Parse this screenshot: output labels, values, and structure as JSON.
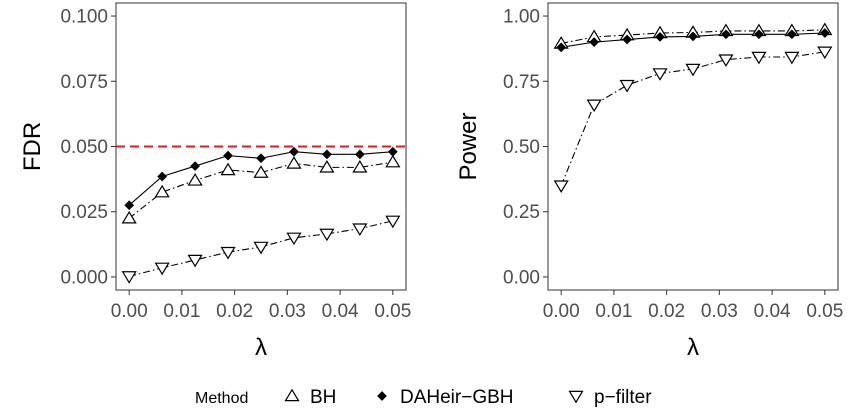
{
  "chart_data": [
    {
      "type": "line",
      "ylabel": "FDR",
      "xlabel": "λ",
      "x": [
        0.0,
        0.00625,
        0.0125,
        0.01875,
        0.025,
        0.03125,
        0.0375,
        0.04375,
        0.05
      ],
      "xticks": [
        0.0,
        0.01,
        0.02,
        0.03,
        0.04,
        0.05
      ],
      "xtick_labels": [
        "0.00",
        "0.01",
        "0.02",
        "0.03",
        "0.04",
        "0.05"
      ],
      "yticks": [
        0.0,
        0.025,
        0.05,
        0.075,
        0.1
      ],
      "ytick_labels": [
        "0.000",
        "0.025",
        "0.050",
        "0.075",
        "0.100"
      ],
      "xlim": [
        -0.0025,
        0.0525
      ],
      "ylim": [
        -0.005,
        0.105
      ],
      "reference_line": {
        "y": 0.05,
        "color": "#e41a1c",
        "style": "dashed"
      },
      "series": [
        {
          "name": "BH",
          "values": [
            0.0225,
            0.0325,
            0.037,
            0.041,
            0.04,
            0.0435,
            0.042,
            0.042,
            0.044
          ]
        },
        {
          "name": "DAHeir−GBH",
          "values": [
            0.0275,
            0.0385,
            0.0425,
            0.0465,
            0.0455,
            0.048,
            0.047,
            0.047,
            0.048
          ]
        },
        {
          "name": "p−filter",
          "values": [
            0.0002,
            0.0035,
            0.0065,
            0.0095,
            0.0115,
            0.015,
            0.0165,
            0.0185,
            0.0215
          ]
        }
      ],
      "grid": false
    },
    {
      "type": "line",
      "ylabel": "Power",
      "xlabel": "λ",
      "x": [
        0.0,
        0.00625,
        0.0125,
        0.01875,
        0.025,
        0.03125,
        0.0375,
        0.04375,
        0.05
      ],
      "xticks": [
        0.0,
        0.01,
        0.02,
        0.03,
        0.04,
        0.05
      ],
      "xtick_labels": [
        "0.00",
        "0.01",
        "0.02",
        "0.03",
        "0.04",
        "0.05"
      ],
      "yticks": [
        0.0,
        0.25,
        0.5,
        0.75,
        1.0
      ],
      "ytick_labels": [
        "0.00",
        "0.25",
        "0.50",
        "0.75",
        "1.00"
      ],
      "xlim": [
        -0.0025,
        0.0525
      ],
      "ylim": [
        -0.05,
        1.05
      ],
      "series": [
        {
          "name": "BH",
          "values": [
            0.895,
            0.92,
            0.927,
            0.935,
            0.937,
            0.943,
            0.943,
            0.943,
            0.947
          ]
        },
        {
          "name": "DAHeir−GBH",
          "values": [
            0.88,
            0.9,
            0.91,
            0.92,
            0.922,
            0.93,
            0.93,
            0.93,
            0.935
          ]
        },
        {
          "name": "p−filter",
          "values": [
            0.35,
            0.66,
            0.735,
            0.78,
            0.797,
            0.833,
            0.843,
            0.843,
            0.863
          ]
        }
      ],
      "grid": false
    }
  ],
  "legend": {
    "title": "Method",
    "placement": "bottom",
    "entries": [
      {
        "label": "BH",
        "marker": "triangle-up-open"
      },
      {
        "label": "DAHeir−GBH",
        "marker": "diamond-filled"
      },
      {
        "label": "p−filter",
        "marker": "triangle-down-open"
      }
    ]
  },
  "styles": {
    "series_line": [
      "dashdot",
      "solid",
      "dashdot"
    ],
    "series_marker": [
      "triangle-up-open",
      "diamond-filled",
      "triangle-down-open"
    ],
    "ink": "#000000",
    "reference": "#e41a1c"
  }
}
